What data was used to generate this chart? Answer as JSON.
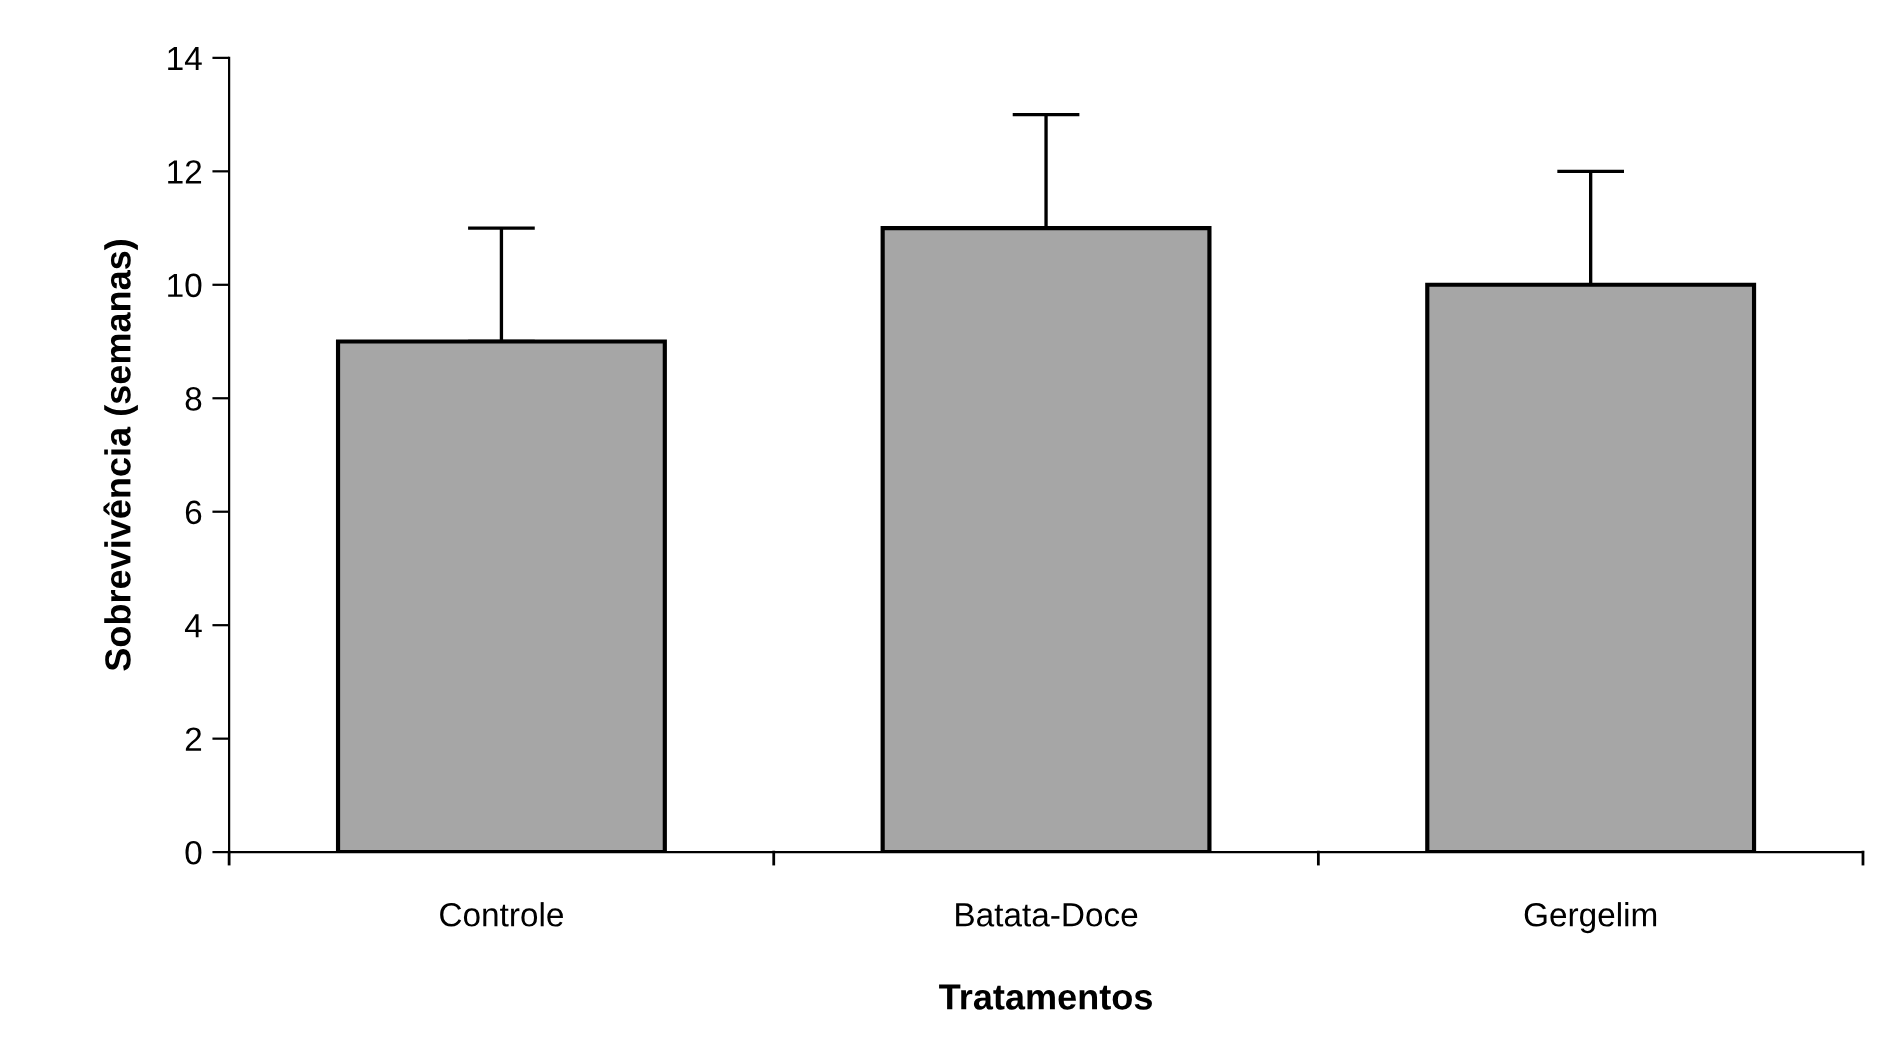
{
  "chart_data": {
    "type": "bar",
    "xlabel": "Tratamentos",
    "ylabel": "Sobrevivência (semanas)",
    "categories": [
      "Controle",
      "Batata-Doce",
      "Gergelim"
    ],
    "values": [
      9,
      11,
      10
    ],
    "errors": [
      [
        9,
        11
      ],
      [
        11,
        13
      ],
      [
        10,
        12
      ]
    ],
    "color": "#a6a6a6",
    "ylim": [
      0,
      14
    ],
    "yticks": [
      0,
      2,
      4,
      6,
      8,
      10,
      12,
      14
    ],
    "grid": false,
    "legend": false
  }
}
